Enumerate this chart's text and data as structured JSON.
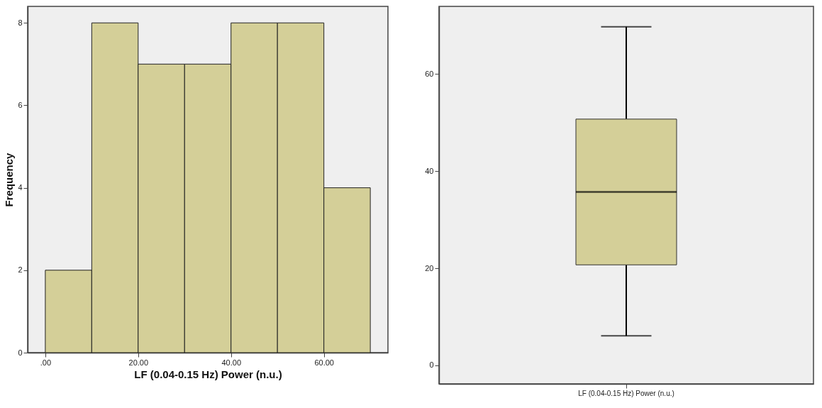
{
  "chart_data": [
    {
      "type": "histogram",
      "xlabel": "LF (0.04-0.15 Hz) Power (n.u.)",
      "ylabel": "Frequency",
      "bins": [
        0,
        10,
        20,
        30,
        40,
        50,
        60,
        70
      ],
      "values": [
        2,
        8,
        7,
        7,
        8,
        8,
        4
      ],
      "color": "#d4cf98",
      "xlim": [
        -3.8,
        73.8
      ],
      "xticks": [
        {
          "value": 0,
          "label": ".00"
        },
        {
          "value": 20,
          "label": "20.00"
        },
        {
          "value": 40,
          "label": "40.00"
        },
        {
          "value": 60,
          "label": "60.00"
        }
      ],
      "ylim": [
        0,
        8.4
      ],
      "yticks": [
        0,
        2,
        4,
        6,
        8
      ],
      "grid": false
    },
    {
      "type": "box",
      "categories": [
        "LF (0.04-0.15 Hz) Power (n.u.)"
      ],
      "color": "#d4cf98",
      "boxes": [
        {
          "low": 6.1,
          "q1": 20.7,
          "median": 35.7,
          "q3": 50.7,
          "high": 69.7
        }
      ],
      "ylim": [
        -3.8,
        73.9
      ],
      "yticks": [
        0,
        20,
        40,
        60
      ],
      "grid": false
    }
  ]
}
